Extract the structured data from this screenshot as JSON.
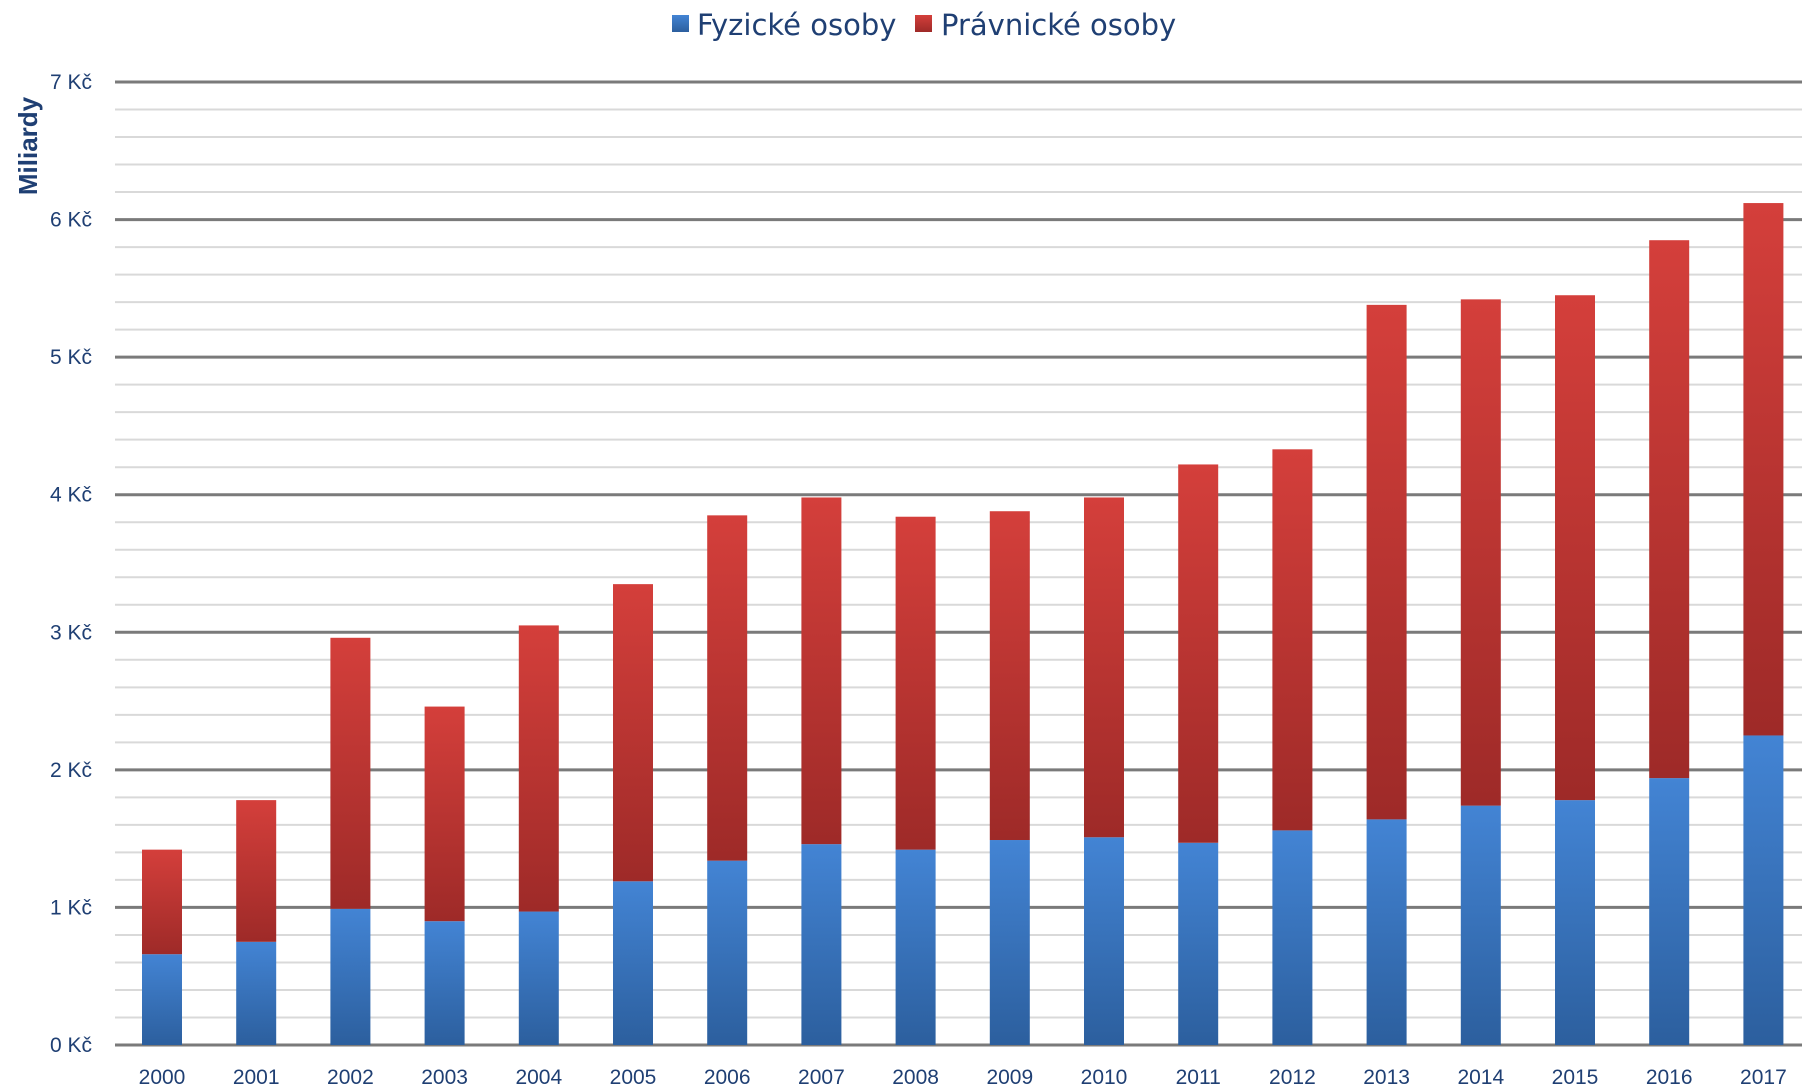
{
  "chart_data": {
    "type": "bar",
    "stacked": true,
    "categories": [
      "2000",
      "2001",
      "2002",
      "2003",
      "2004",
      "2005",
      "2006",
      "2007",
      "2008",
      "2009",
      "2010",
      "2011",
      "2012",
      "2013",
      "2014",
      "2015",
      "2016",
      "2017"
    ],
    "series": [
      {
        "name": "Fyzické osoby",
        "color": "#3f7fce",
        "values": [
          0.66,
          0.75,
          0.99,
          0.9,
          0.97,
          1.19,
          1.34,
          1.46,
          1.42,
          1.49,
          1.51,
          1.47,
          1.56,
          1.64,
          1.74,
          1.78,
          1.94,
          2.25
        ]
      },
      {
        "name": "Právnické osoby",
        "color": "#cf3d3a",
        "values": [
          0.76,
          1.03,
          1.97,
          1.56,
          2.08,
          2.16,
          2.51,
          2.52,
          2.42,
          2.39,
          2.47,
          2.75,
          2.77,
          3.74,
          3.68,
          3.67,
          3.91,
          3.87
        ]
      }
    ],
    "ylabel": "Miliardy",
    "ylim": [
      0,
      7
    ],
    "y_ticks": [
      "0 Kč",
      "1 Kč",
      "2 Kč",
      "3 Kč",
      "4 Kč",
      "5 Kč",
      "6 Kč",
      "7 Kč"
    ],
    "minor_gridlines_per_unit": 5,
    "grid": true,
    "legend_position": "top-center"
  }
}
